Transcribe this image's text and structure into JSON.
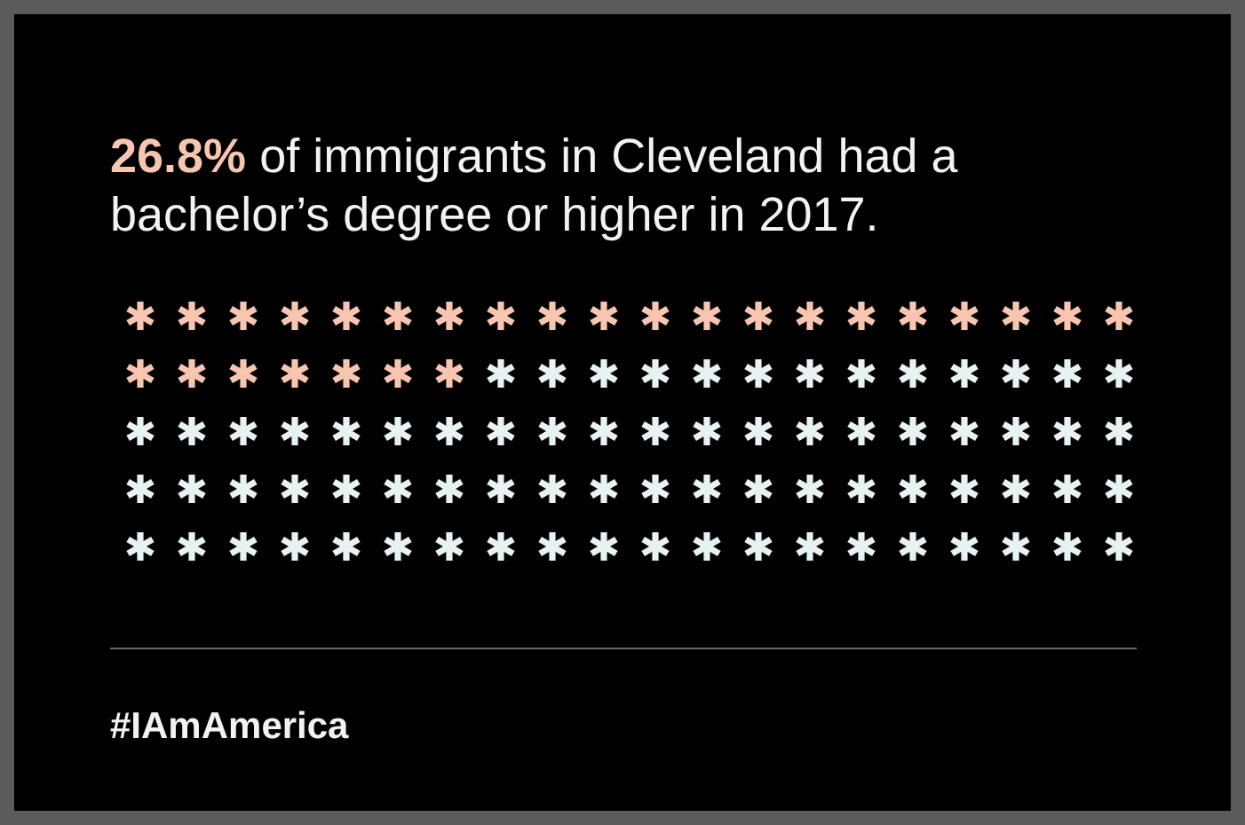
{
  "chart_data": {
    "type": "other",
    "title": "of immigrants in Cleveland had a bachelor’s degree or higher in 2017.",
    "values": [
      26.8
    ],
    "value_labels": [
      "26.8%"
    ],
    "color": "#f8c6b0",
    "annotations": [
      "#IAmAmerica"
    ]
  }
}
